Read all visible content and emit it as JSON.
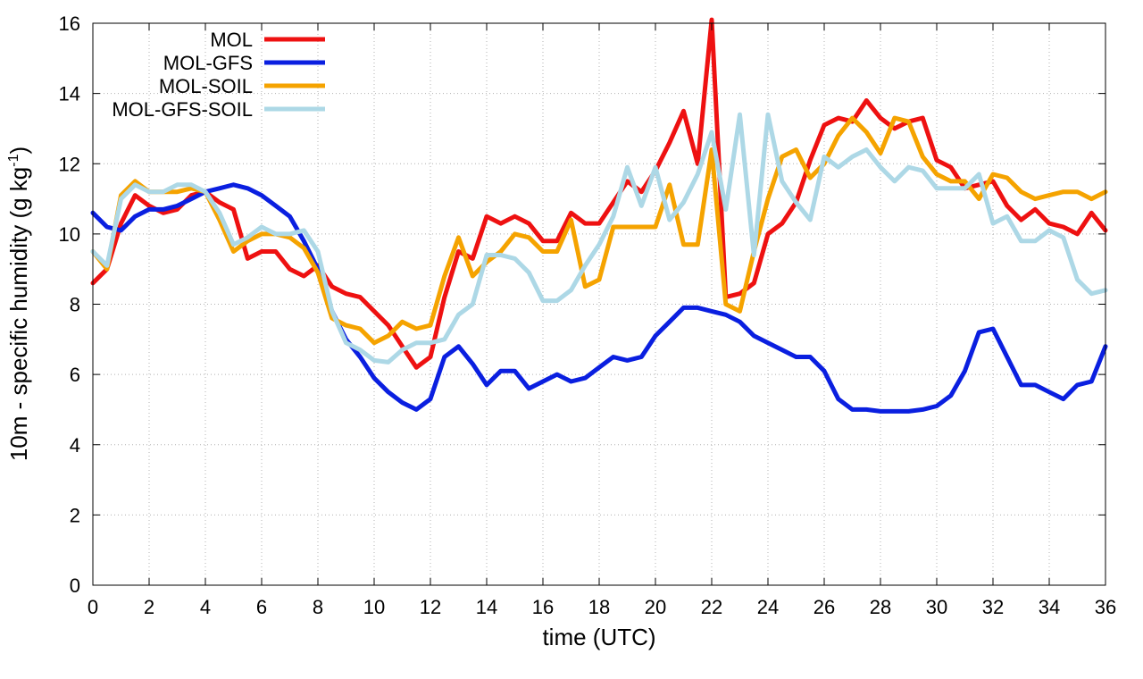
{
  "chart_data": {
    "type": "line",
    "xlabel": "time (UTC)",
    "ylabel": "10m - specific humidity (g kg",
    "ylabel_sup": "-1",
    "ylabel_close": ")",
    "xlim": [
      0,
      36
    ],
    "ylim": [
      0,
      16
    ],
    "xticks": [
      0,
      2,
      4,
      6,
      8,
      10,
      12,
      14,
      16,
      18,
      20,
      22,
      24,
      26,
      28,
      30,
      32,
      34,
      36
    ],
    "yticks": [
      0,
      2,
      4,
      6,
      8,
      10,
      12,
      14,
      16
    ],
    "grid": true,
    "legend_position": "top-left",
    "x": [
      0,
      0.5,
      1,
      1.5,
      2,
      2.5,
      3,
      3.5,
      4,
      4.5,
      5,
      5.5,
      6,
      6.5,
      7,
      7.5,
      8,
      8.5,
      9,
      9.5,
      10,
      10.5,
      11,
      11.5,
      12,
      12.5,
      13,
      13.5,
      14,
      14.5,
      15,
      15.5,
      16,
      16.5,
      17,
      17.5,
      18,
      18.5,
      19,
      19.5,
      20,
      20.5,
      21,
      21.5,
      22,
      22.5,
      23,
      23.5,
      24,
      24.5,
      25,
      25.5,
      26,
      26.5,
      27,
      27.5,
      28,
      28.5,
      29,
      29.5,
      30,
      30.5,
      31,
      31.5,
      32,
      32.5,
      33,
      33.5,
      34,
      34.5,
      35,
      35.5,
      36
    ],
    "series": [
      {
        "name": "MOL",
        "color": "#ee1111",
        "values": [
          8.6,
          9.0,
          10.3,
          11.1,
          10.8,
          10.6,
          10.7,
          11.1,
          11.2,
          10.9,
          10.7,
          9.3,
          9.5,
          9.5,
          9.0,
          8.8,
          9.1,
          8.5,
          8.3,
          8.2,
          7.8,
          7.4,
          6.8,
          6.2,
          6.5,
          8.2,
          9.5,
          9.3,
          10.5,
          10.3,
          10.5,
          10.3,
          9.8,
          9.8,
          10.6,
          10.3,
          10.3,
          10.9,
          11.5,
          11.2,
          11.8,
          12.6,
          13.5,
          12.0,
          16.1,
          8.2,
          8.3,
          8.6,
          10.0,
          10.3,
          10.9,
          12.1,
          13.1,
          13.3,
          13.2,
          13.8,
          13.3,
          13.0,
          13.2,
          13.3,
          12.1,
          11.9,
          11.3,
          11.4,
          11.5,
          10.8,
          10.4,
          10.7,
          10.3,
          10.2,
          10.0,
          10.6,
          10.1
        ]
      },
      {
        "name": "MOL-GFS",
        "color": "#0a1fe0",
        "values": [
          10.6,
          10.2,
          10.1,
          10.5,
          10.7,
          10.7,
          10.8,
          11.0,
          11.2,
          11.3,
          11.4,
          11.3,
          11.1,
          10.8,
          10.5,
          9.8,
          9.0,
          7.8,
          7.0,
          6.5,
          5.9,
          5.5,
          5.2,
          5.0,
          5.3,
          6.5,
          6.8,
          6.3,
          5.7,
          6.1,
          6.1,
          5.6,
          5.8,
          6.0,
          5.8,
          5.9,
          6.2,
          6.5,
          6.4,
          6.5,
          7.1,
          7.5,
          7.9,
          7.9,
          7.8,
          7.7,
          7.5,
          7.1,
          6.9,
          6.7,
          6.5,
          6.5,
          6.1,
          5.3,
          5.0,
          5.0,
          4.95,
          4.95,
          4.95,
          5.0,
          5.1,
          5.4,
          6.1,
          7.2,
          7.3,
          6.5,
          5.7,
          5.7,
          5.5,
          5.3,
          5.7,
          5.8,
          6.8
        ]
      },
      {
        "name": "MOL-SOIL",
        "color": "#f5a300",
        "values": [
          9.5,
          9.0,
          11.1,
          11.5,
          11.2,
          11.2,
          11.2,
          11.3,
          11.2,
          10.4,
          9.5,
          9.8,
          10.0,
          10.0,
          9.9,
          9.6,
          8.9,
          7.6,
          7.4,
          7.3,
          6.9,
          7.1,
          7.5,
          7.3,
          7.4,
          8.8,
          9.9,
          8.8,
          9.2,
          9.5,
          10.0,
          9.9,
          9.5,
          9.5,
          10.4,
          8.5,
          8.7,
          10.2,
          10.2,
          10.2,
          10.2,
          11.4,
          9.7,
          9.7,
          12.4,
          8.0,
          7.8,
          9.5,
          11.0,
          12.2,
          12.4,
          11.6,
          12.0,
          12.8,
          13.3,
          12.9,
          12.3,
          13.3,
          13.2,
          12.2,
          11.7,
          11.5,
          11.5,
          11.0,
          11.7,
          11.6,
          11.2,
          11.0,
          11.1,
          11.2,
          11.2,
          11.0,
          11.2
        ]
      },
      {
        "name": "MOL-GFS-SOIL",
        "color": "#add8e6",
        "values": [
          9.5,
          9.1,
          11.0,
          11.4,
          11.2,
          11.2,
          11.4,
          11.4,
          11.2,
          10.6,
          9.7,
          9.9,
          10.2,
          10.0,
          10.0,
          10.1,
          9.5,
          7.8,
          6.9,
          6.7,
          6.4,
          6.35,
          6.7,
          6.9,
          6.9,
          7.0,
          7.7,
          8.0,
          9.4,
          9.4,
          9.3,
          8.9,
          8.1,
          8.1,
          8.4,
          9.1,
          9.7,
          10.5,
          11.9,
          10.8,
          11.9,
          10.4,
          10.9,
          11.7,
          12.9,
          10.7,
          13.4,
          9.4,
          13.4,
          11.5,
          10.9,
          10.4,
          12.2,
          11.9,
          12.2,
          12.4,
          11.9,
          11.5,
          11.9,
          11.8,
          11.3,
          11.3,
          11.3,
          11.7,
          10.3,
          10.5,
          9.8,
          9.8,
          10.1,
          9.9,
          8.7,
          8.3,
          8.4
        ]
      }
    ]
  }
}
